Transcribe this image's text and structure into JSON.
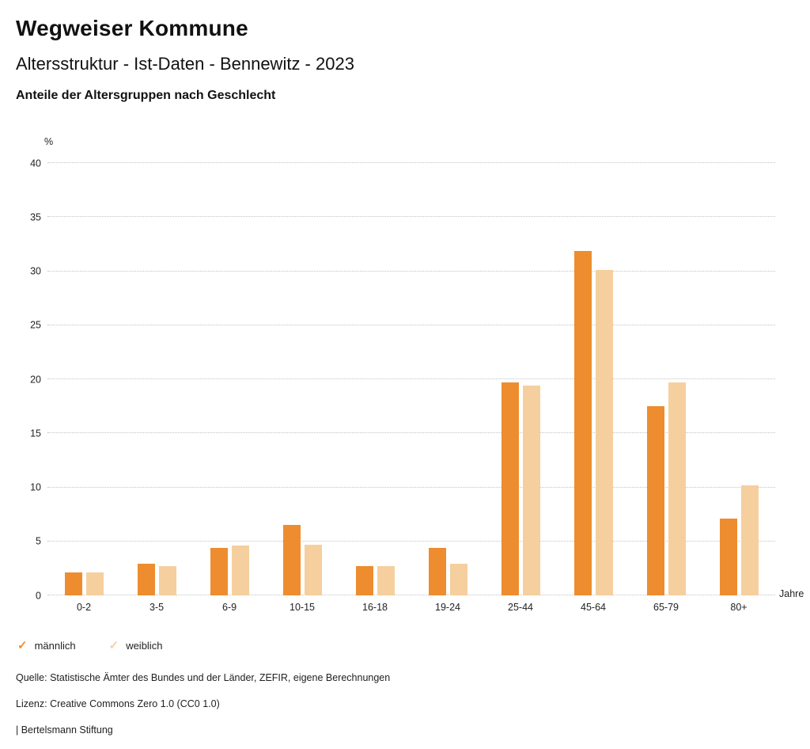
{
  "header": {
    "title": "Wegweiser Kommune",
    "subtitle": "Altersstruktur - Ist-Daten - Bennewitz - 2023",
    "heading": "Anteile der Altersgruppen nach Geschlecht"
  },
  "chart_data": {
    "type": "bar",
    "title": "Anteile der Altersgruppen nach Geschlecht",
    "categories": [
      "0-2",
      "3-5",
      "6-9",
      "10-15",
      "16-18",
      "19-24",
      "25-44",
      "45-64",
      "65-79",
      "80+"
    ],
    "series": [
      {
        "name": "männlich",
        "color": "#ED8D2F",
        "values": [
          2.1,
          2.9,
          4.4,
          6.5,
          2.7,
          4.4,
          19.7,
          31.9,
          17.5,
          7.1
        ]
      },
      {
        "name": "weiblich",
        "color": "#F6CF9F",
        "values": [
          2.1,
          2.7,
          4.6,
          4.7,
          2.7,
          2.9,
          19.4,
          30.1,
          19.7,
          10.2
        ]
      }
    ],
    "ylabel_unit": "%",
    "xlabel_unit": "Jahre",
    "ylim": [
      0,
      40
    ],
    "ytick_step": 5,
    "yticks": [
      0,
      5,
      10,
      15,
      20,
      25,
      30,
      35,
      40
    ],
    "grid": "dotted-horizontal",
    "legend_position": "bottom-left"
  },
  "legend": {
    "check_glyph": "✓",
    "items": [
      {
        "label": "männlich",
        "color": "#ED8D2F"
      },
      {
        "label": "weiblich",
        "color": "#F6CF9F"
      }
    ]
  },
  "footer": {
    "source": "Quelle: Statistische Ämter des Bundes und der Länder, ZEFIR, eigene Berechnungen",
    "license": "Lizenz: Creative Commons Zero 1.0 (CC0 1.0)",
    "attribution": "| Bertelsmann Stiftung"
  }
}
